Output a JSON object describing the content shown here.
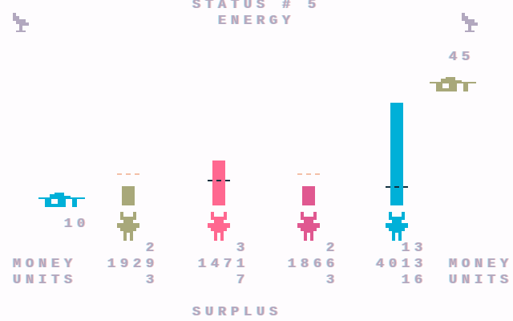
{
  "header": {
    "title": "STATUS # 5",
    "subtitle": "ENERGY"
  },
  "footer": {
    "label": "SURPLUS"
  },
  "store": {
    "left_value": "10",
    "right_value": "45"
  },
  "labels": {
    "money": "MONEY",
    "units": "UNITS"
  },
  "players": [
    {
      "color": "#a8a87a",
      "top": "2",
      "money": "1929",
      "units": "3",
      "bar_level": 1.5,
      "marker_level": 2.5,
      "marker_color": "#f4c0a8"
    },
    {
      "color": "#ff6890",
      "top": "3",
      "money": "1471",
      "units": "7",
      "bar_level": 3.5,
      "marker_level": 2,
      "marker_color": "#103040"
    },
    {
      "color": "#e05890",
      "top": "2",
      "money": "1866",
      "units": "3",
      "bar_level": 1.5,
      "marker_level": 2.5,
      "marker_color": "#f4c0a8"
    },
    {
      "color": "#00b0d8",
      "top": "13",
      "money": "4013",
      "units": "16",
      "bar_level": 8,
      "marker_level": 1.5,
      "marker_color": "#103040"
    }
  ],
  "colors": {
    "text": "#b2a8bf",
    "store_left": "#00b0d8",
    "store_right": "#a8a87a",
    "antenna": "#b2a8bf"
  },
  "icons": {
    "antenna": "antenna-icon",
    "store": "store-building-icon",
    "player": "player-creature-icon"
  }
}
